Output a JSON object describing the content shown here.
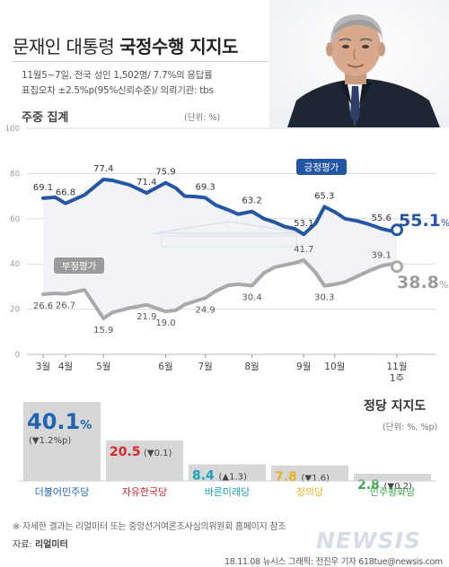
{
  "header": {
    "title_plain": "문재인 대통령",
    "title_bold": "국정수행 지지도",
    "survey_line1": "11월5~7일, 전국 성인 1,502명/ 7.7%의 응답률",
    "survey_line2": "표집오차 ±2.5%p(95%신뢰수준)/ 의뢰기관: tbs"
  },
  "weekly_section": {
    "title": "주중 집계",
    "unit": "(단위: %)"
  },
  "bars_section": {
    "title": "정당 지지도",
    "unit": "(단위: %, %p)"
  },
  "footer": {
    "note": "※ 자세한 결과는 리얼미터 또는 중앙선거여론조사심의위원회 홈페이지 참조",
    "source_label": "자료:",
    "source_name": "리얼미터",
    "credit": "18.11.08 뉴시스 그래픽: 전진우 기자 618tue@newsis.com",
    "logo": "NEWSIS"
  },
  "colors": {
    "positive": "#2456a6",
    "negative": "#a9a9a9",
    "minjoo": "#1f63b5",
    "jayu": "#d8262a",
    "bareun": "#1aa3b8",
    "jeongui": "#e8b51f",
    "pyeonghwa": "#3aa74c"
  },
  "chart_data": [
    {
      "type": "line",
      "title": "주중 집계",
      "ylabel": "(단위: %)",
      "ylim": [
        0,
        100
      ],
      "yticks": [
        "0",
        "20",
        "40",
        "60",
        "80",
        "100"
      ],
      "x_labels": [
        "3월",
        "4월",
        "5월",
        "6월",
        "7월",
        "8월",
        "9월",
        "10월",
        "11월 1주"
      ],
      "x_label_positions": [
        0,
        1.3,
        3.5,
        7.1,
        9.4,
        12.1,
        15.1,
        16.9,
        20.5
      ],
      "x": [
        0,
        0.7,
        1.3,
        2.4,
        3.5,
        4.0,
        5.0,
        6.0,
        7.1,
        7.7,
        8.2,
        8.8,
        9.4,
        10.0,
        10.7,
        11.3,
        12.1,
        12.8,
        13.4,
        14.0,
        14.6,
        15.1,
        15.8,
        16.3,
        16.9,
        17.5,
        18.2,
        18.9,
        19.6,
        20.2,
        20.5
      ],
      "series": [
        {
          "name": "긍정평가",
          "values": [
            69.1,
            69.5,
            66.8,
            70.5,
            77.4,
            77.0,
            75.0,
            71.4,
            75.9,
            73.5,
            70.0,
            69.8,
            69.3,
            66.0,
            64.0,
            62.0,
            63.2,
            60.0,
            58.5,
            56.5,
            55.5,
            53.1,
            58.0,
            65.3,
            63.0,
            60.0,
            59.0,
            57.5,
            55.6,
            54.5,
            55.1
          ],
          "labels": [
            {
              "index": 0,
              "text": "69.1"
            },
            {
              "index": 2,
              "text": "66.8"
            },
            {
              "index": 4,
              "text": "77.4"
            },
            {
              "index": 7,
              "text": "71.4"
            },
            {
              "index": 8,
              "text": "75.9"
            },
            {
              "index": 12,
              "text": "69.3"
            },
            {
              "index": 16,
              "text": "63.2"
            },
            {
              "index": 21,
              "text": "53.1"
            },
            {
              "index": 23,
              "text": "65.3"
            },
            {
              "index": 28,
              "text": "55.6"
            }
          ],
          "final_label": "55.1",
          "final_unit": "%"
        },
        {
          "name": "부정평가",
          "values": [
            26.6,
            27.0,
            26.7,
            28.5,
            15.9,
            18.5,
            20.5,
            21.9,
            19.0,
            19.5,
            22.0,
            23.5,
            24.9,
            28.0,
            30.5,
            31.0,
            30.4,
            36.0,
            38.5,
            39.5,
            40.5,
            41.7,
            36.0,
            30.3,
            31.0,
            32.0,
            34.5,
            37.0,
            39.1,
            40.0,
            38.8
          ],
          "labels": [
            {
              "index": 0,
              "text": "26.6"
            },
            {
              "index": 2,
              "text": "26.7"
            },
            {
              "index": 4,
              "text": "15.9"
            },
            {
              "index": 7,
              "text": "21.9"
            },
            {
              "index": 8,
              "text": "19.0"
            },
            {
              "index": 12,
              "text": "24.9"
            },
            {
              "index": 16,
              "text": "30.4"
            },
            {
              "index": 21,
              "text": "41.7"
            },
            {
              "index": 23,
              "text": "30.3"
            },
            {
              "index": 28,
              "text": "39.1"
            }
          ],
          "final_label": "38.8",
          "final_unit": "%"
        }
      ]
    },
    {
      "type": "bar",
      "title": "정당 지지도",
      "ylabel": "(단위: %, %p)",
      "categories": [
        "더불어민주당",
        "자유한국당",
        "바른미래당",
        "정의당",
        "민주평화당"
      ],
      "values": [
        40.1,
        20.5,
        8.4,
        7.8,
        2.8
      ],
      "value_labels": [
        "40.1",
        "20.5",
        "8.4",
        "7.8",
        "2.8"
      ],
      "changes": [
        "(▼1.2%p)",
        "(▼0.1)",
        "(▲1.3)",
        "(▼1.6)",
        "(▼0.2)"
      ],
      "colors": [
        "#1f63b5",
        "#d8262a",
        "#1aa3b8",
        "#e8b51f",
        "#3aa74c"
      ]
    }
  ]
}
